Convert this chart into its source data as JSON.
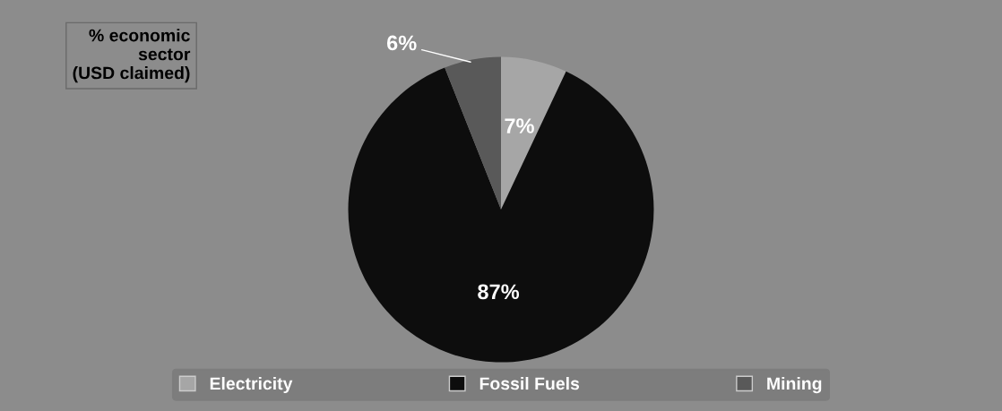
{
  "chart_data": {
    "type": "pie",
    "title": "% economic\nsector\n(USD claimed)",
    "categories": [
      "Electricity",
      "Fossil Fuels",
      "Mining"
    ],
    "values": [
      7,
      87,
      6
    ],
    "colors": [
      "#a6a6a6",
      "#0d0d0d",
      "#595959"
    ],
    "value_labels": [
      "7%",
      "87%",
      "6%"
    ],
    "legend": "bottom"
  }
}
